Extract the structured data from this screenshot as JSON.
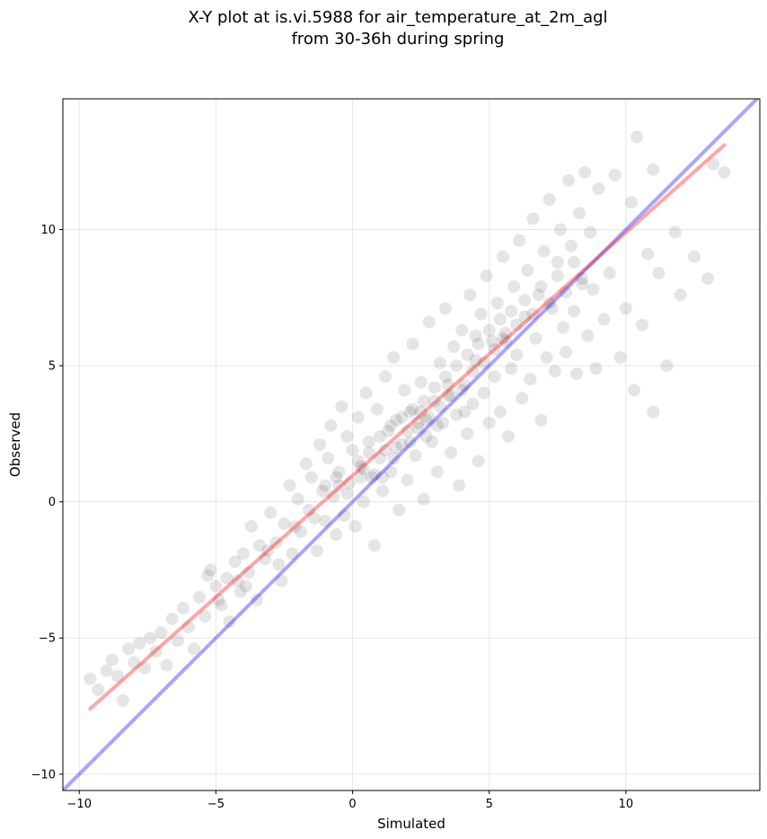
{
  "chart_data": {
    "type": "scatter",
    "title": "X-Y plot at is.vi.5988 for air_temperature_at_2m_agl",
    "subtitle": "from 30-36h during spring",
    "xlabel": "Simulated",
    "ylabel": "Observed",
    "xlim": [
      -10.6,
      14.9
    ],
    "ylim": [
      -10.6,
      14.8
    ],
    "xticks": [
      -10,
      -5,
      0,
      5,
      10
    ],
    "yticks": [
      -10,
      -5,
      0,
      5,
      10
    ],
    "xtick_labels": [
      "−10",
      "−5",
      "0",
      "5",
      "10"
    ],
    "ytick_labels": [
      "−10",
      "−5",
      "0",
      "5",
      "10"
    ],
    "grid": true,
    "point_color": "#000000",
    "point_opacity": 0.1,
    "series": [
      {
        "points": [
          [
            -9.6,
            -6.5
          ],
          [
            -9.3,
            -6.9
          ],
          [
            -9.0,
            -6.2
          ],
          [
            -8.8,
            -5.8
          ],
          [
            -8.6,
            -6.4
          ],
          [
            -8.4,
            -7.3
          ],
          [
            -8.2,
            -5.4
          ],
          [
            -8.0,
            -5.9
          ],
          [
            -7.8,
            -5.2
          ],
          [
            -7.6,
            -6.1
          ],
          [
            -7.4,
            -5.0
          ],
          [
            -7.2,
            -5.5
          ],
          [
            -7.0,
            -4.8
          ],
          [
            -6.8,
            -6.0
          ],
          [
            -6.6,
            -4.3
          ],
          [
            -6.4,
            -5.1
          ],
          [
            -6.2,
            -3.9
          ],
          [
            -6.0,
            -4.6
          ],
          [
            -5.8,
            -5.4
          ],
          [
            -5.6,
            -3.5
          ],
          [
            -5.4,
            -4.2
          ],
          [
            -5.3,
            -2.7
          ],
          [
            -5.2,
            -2.5
          ],
          [
            -5.0,
            -3.1
          ],
          [
            -4.8,
            -3.8
          ],
          [
            -4.6,
            -2.8
          ],
          [
            -4.5,
            -4.4
          ],
          [
            -4.3,
            -2.2
          ],
          [
            -4.1,
            -3.3
          ],
          [
            -4.0,
            -1.9
          ],
          [
            -3.8,
            -2.6
          ],
          [
            -3.7,
            -0.9
          ],
          [
            -3.5,
            -3.6
          ],
          [
            -3.4,
            -1.6
          ],
          [
            -3.2,
            -2.1
          ],
          [
            -3.0,
            -0.4
          ],
          [
            -2.8,
            -1.5
          ],
          [
            -2.6,
            -2.9
          ],
          [
            -2.5,
            -0.8
          ],
          [
            -2.3,
            0.6
          ],
          [
            -2.2,
            -1.9
          ],
          [
            -2.0,
            0.1
          ],
          [
            -1.9,
            -1.1
          ],
          [
            -1.7,
            1.4
          ],
          [
            -1.6,
            -0.3
          ],
          [
            -1.5,
            0.9
          ],
          [
            -1.3,
            -1.8
          ],
          [
            -1.2,
            2.1
          ],
          [
            -1.1,
            0.4
          ],
          [
            -1.0,
            -0.7
          ],
          [
            -0.9,
            1.6
          ],
          [
            -0.8,
            2.8
          ],
          [
            -0.7,
            0.2
          ],
          [
            -0.6,
            -1.2
          ],
          [
            -0.5,
            1.1
          ],
          [
            -0.4,
            3.5
          ],
          [
            -0.3,
            -0.5
          ],
          [
            -0.2,
            2.4
          ],
          [
            -0.1,
            0.7
          ],
          [
            0.0,
            1.9
          ],
          [
            0.1,
            -0.9
          ],
          [
            0.2,
            3.1
          ],
          [
            0.3,
            1.3
          ],
          [
            0.4,
            0.0
          ],
          [
            0.5,
            4.0
          ],
          [
            0.6,
            2.2
          ],
          [
            0.7,
            0.9
          ],
          [
            0.8,
            -1.6
          ],
          [
            0.9,
            3.4
          ],
          [
            1.0,
            1.6
          ],
          [
            1.1,
            0.4
          ],
          [
            1.2,
            4.6
          ],
          [
            1.3,
            2.6
          ],
          [
            1.4,
            1.1
          ],
          [
            1.5,
            5.3
          ],
          [
            1.6,
            3.0
          ],
          [
            1.7,
            -0.3
          ],
          [
            1.8,
            2.1
          ],
          [
            1.9,
            4.1
          ],
          [
            2.0,
            0.8
          ],
          [
            2.1,
            3.3
          ],
          [
            2.2,
            5.8
          ],
          [
            2.3,
            1.7
          ],
          [
            2.4,
            2.7
          ],
          [
            2.5,
            4.4
          ],
          [
            2.6,
            0.1
          ],
          [
            2.7,
            3.0
          ],
          [
            2.8,
            6.6
          ],
          [
            2.9,
            2.2
          ],
          [
            3.0,
            3.7
          ],
          [
            3.1,
            1.1
          ],
          [
            3.2,
            5.1
          ],
          [
            3.3,
            2.9
          ],
          [
            3.4,
            7.1
          ],
          [
            3.5,
            3.9
          ],
          [
            3.6,
            1.8
          ],
          [
            3.7,
            5.7
          ],
          [
            3.8,
            3.2
          ],
          [
            3.9,
            0.6
          ],
          [
            4.0,
            6.3
          ],
          [
            4.1,
            4.3
          ],
          [
            4.2,
            2.5
          ],
          [
            4.3,
            7.6
          ],
          [
            4.4,
            3.6
          ],
          [
            4.5,
            5.2
          ],
          [
            4.6,
            1.5
          ],
          [
            4.7,
            6.9
          ],
          [
            4.8,
            4.0
          ],
          [
            4.9,
            8.3
          ],
          [
            5.0,
            2.9
          ],
          [
            5.1,
            5.9
          ],
          [
            5.2,
            4.6
          ],
          [
            5.3,
            7.3
          ],
          [
            5.4,
            3.3
          ],
          [
            5.5,
            9.0
          ],
          [
            5.6,
            6.2
          ],
          [
            5.7,
            2.4
          ],
          [
            5.8,
            4.9
          ],
          [
            5.9,
            7.9
          ],
          [
            6.0,
            5.4
          ],
          [
            6.1,
            9.6
          ],
          [
            6.2,
            3.8
          ],
          [
            6.3,
            6.8
          ],
          [
            6.4,
            8.5
          ],
          [
            6.5,
            4.5
          ],
          [
            6.6,
            10.4
          ],
          [
            6.7,
            6.0
          ],
          [
            6.8,
            7.6
          ],
          [
            6.9,
            3.0
          ],
          [
            7.0,
            9.2
          ],
          [
            7.1,
            5.3
          ],
          [
            7.2,
            11.1
          ],
          [
            7.3,
            7.1
          ],
          [
            7.4,
            4.8
          ],
          [
            7.5,
            8.8
          ],
          [
            7.6,
            10.0
          ],
          [
            7.7,
            6.4
          ],
          [
            7.8,
            5.5
          ],
          [
            7.9,
            11.8
          ],
          [
            8.0,
            9.4
          ],
          [
            8.1,
            7.0
          ],
          [
            8.2,
            4.7
          ],
          [
            8.3,
            10.6
          ],
          [
            8.4,
            8.2
          ],
          [
            8.5,
            12.1
          ],
          [
            8.6,
            6.1
          ],
          [
            8.7,
            9.9
          ],
          [
            8.8,
            7.8
          ],
          [
            8.9,
            4.9
          ],
          [
            9.0,
            11.5
          ],
          [
            9.2,
            6.7
          ],
          [
            9.4,
            8.4
          ],
          [
            9.6,
            12.0
          ],
          [
            9.8,
            5.3
          ],
          [
            10.0,
            7.1
          ],
          [
            10.2,
            11.0
          ],
          [
            10.3,
            4.1
          ],
          [
            10.4,
            13.4
          ],
          [
            10.6,
            6.5
          ],
          [
            10.8,
            9.1
          ],
          [
            11.0,
            12.2
          ],
          [
            11.0,
            3.3
          ],
          [
            11.2,
            8.4
          ],
          [
            11.5,
            5.0
          ],
          [
            11.8,
            9.9
          ],
          [
            12.0,
            7.6
          ],
          [
            12.5,
            9.0
          ],
          [
            13.0,
            8.2
          ],
          [
            13.2,
            12.4
          ],
          [
            13.6,
            12.1
          ],
          [
            -4.9,
            -3.6
          ],
          [
            -4.2,
            -2.9
          ],
          [
            -3.9,
            -3.1
          ],
          [
            -3.1,
            -1.8
          ],
          [
            -2.7,
            -2.3
          ],
          [
            -2.1,
            -0.9
          ],
          [
            -1.4,
            -0.6
          ],
          [
            -1.0,
            0.6
          ],
          [
            -0.6,
            0.9
          ],
          [
            -0.2,
            0.3
          ],
          [
            0.2,
            1.5
          ],
          [
            0.4,
            1.2
          ],
          [
            0.6,
            1.8
          ],
          [
            0.8,
            1.0
          ],
          [
            1.0,
            2.4
          ],
          [
            1.2,
            1.9
          ],
          [
            1.4,
            2.8
          ],
          [
            1.6,
            2.0
          ],
          [
            1.8,
            3.1
          ],
          [
            2.0,
            2.6
          ],
          [
            2.2,
            3.4
          ],
          [
            2.4,
            2.9
          ],
          [
            2.6,
            3.7
          ],
          [
            2.8,
            3.1
          ],
          [
            3.0,
            4.2
          ],
          [
            3.2,
            3.5
          ],
          [
            3.4,
            4.6
          ],
          [
            3.6,
            3.9
          ],
          [
            3.8,
            5.0
          ],
          [
            4.0,
            4.1
          ],
          [
            4.2,
            5.4
          ],
          [
            4.4,
            4.8
          ],
          [
            4.6,
            5.8
          ],
          [
            4.8,
            5.1
          ],
          [
            5.0,
            6.3
          ],
          [
            5.2,
            5.6
          ],
          [
            5.4,
            6.7
          ],
          [
            5.6,
            5.9
          ],
          [
            5.8,
            7.0
          ],
          [
            6.0,
            6.5
          ],
          [
            6.3,
            7.4
          ],
          [
            6.6,
            6.9
          ],
          [
            6.9,
            7.9
          ],
          [
            7.2,
            7.3
          ],
          [
            7.5,
            8.3
          ],
          [
            7.8,
            7.7
          ],
          [
            8.1,
            8.8
          ],
          [
            8.4,
            8.0
          ],
          [
            0.3,
            0.9
          ],
          [
            -0.5,
            0.6
          ],
          [
            1.5,
            1.6
          ],
          [
            2.5,
            3.3
          ],
          [
            3.5,
            4.3
          ],
          [
            4.5,
            6.1
          ],
          [
            5.5,
            6.0
          ],
          [
            2.1,
            2.2
          ],
          [
            3.1,
            2.8
          ],
          [
            1.1,
            0.9
          ],
          [
            4.1,
            3.3
          ],
          [
            2.7,
            2.4
          ]
        ]
      }
    ],
    "lines": [
      {
        "color": "#0000ff",
        "opacity": 0.35,
        "x": [
          -10.6,
          14.9
        ],
        "y": [
          -10.6,
          14.9
        ]
      },
      {
        "color": "#ff0000",
        "opacity": 0.35,
        "x": [
          -9.6,
          13.6
        ],
        "y": [
          -7.6,
          13.1
        ]
      }
    ]
  }
}
